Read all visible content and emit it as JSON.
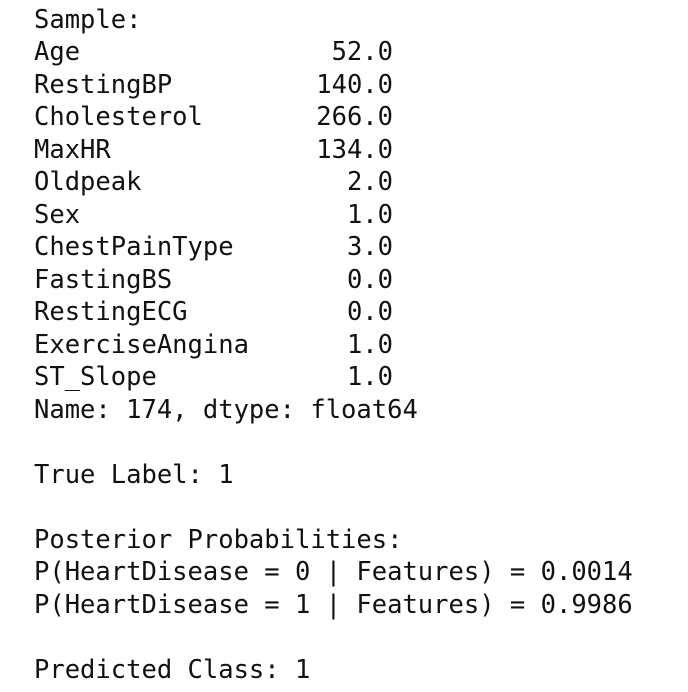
{
  "header": "Sample:",
  "features": [
    {
      "name": "Age",
      "value": "52.0"
    },
    {
      "name": "RestingBP",
      "value": "140.0"
    },
    {
      "name": "Cholesterol",
      "value": "266.0"
    },
    {
      "name": "MaxHR",
      "value": "134.0"
    },
    {
      "name": "Oldpeak",
      "value": "2.0"
    },
    {
      "name": "Sex",
      "value": "1.0"
    },
    {
      "name": "ChestPainType",
      "value": "3.0"
    },
    {
      "name": "FastingBS",
      "value": "0.0"
    },
    {
      "name": "RestingECG",
      "value": "0.0"
    },
    {
      "name": "ExerciseAngina",
      "value": "1.0"
    },
    {
      "name": "ST_Slope",
      "value": "1.0"
    }
  ],
  "series_info": "Name: 174, dtype: float64",
  "true_label": "True Label: 1",
  "posterior_title": "Posterior Probabilities:",
  "posteriors": [
    "P(HeartDisease = 0 | Features) = 0.0014",
    "P(HeartDisease = 1 | Features) = 0.9986"
  ],
  "prediction": "Predicted Class: 1"
}
